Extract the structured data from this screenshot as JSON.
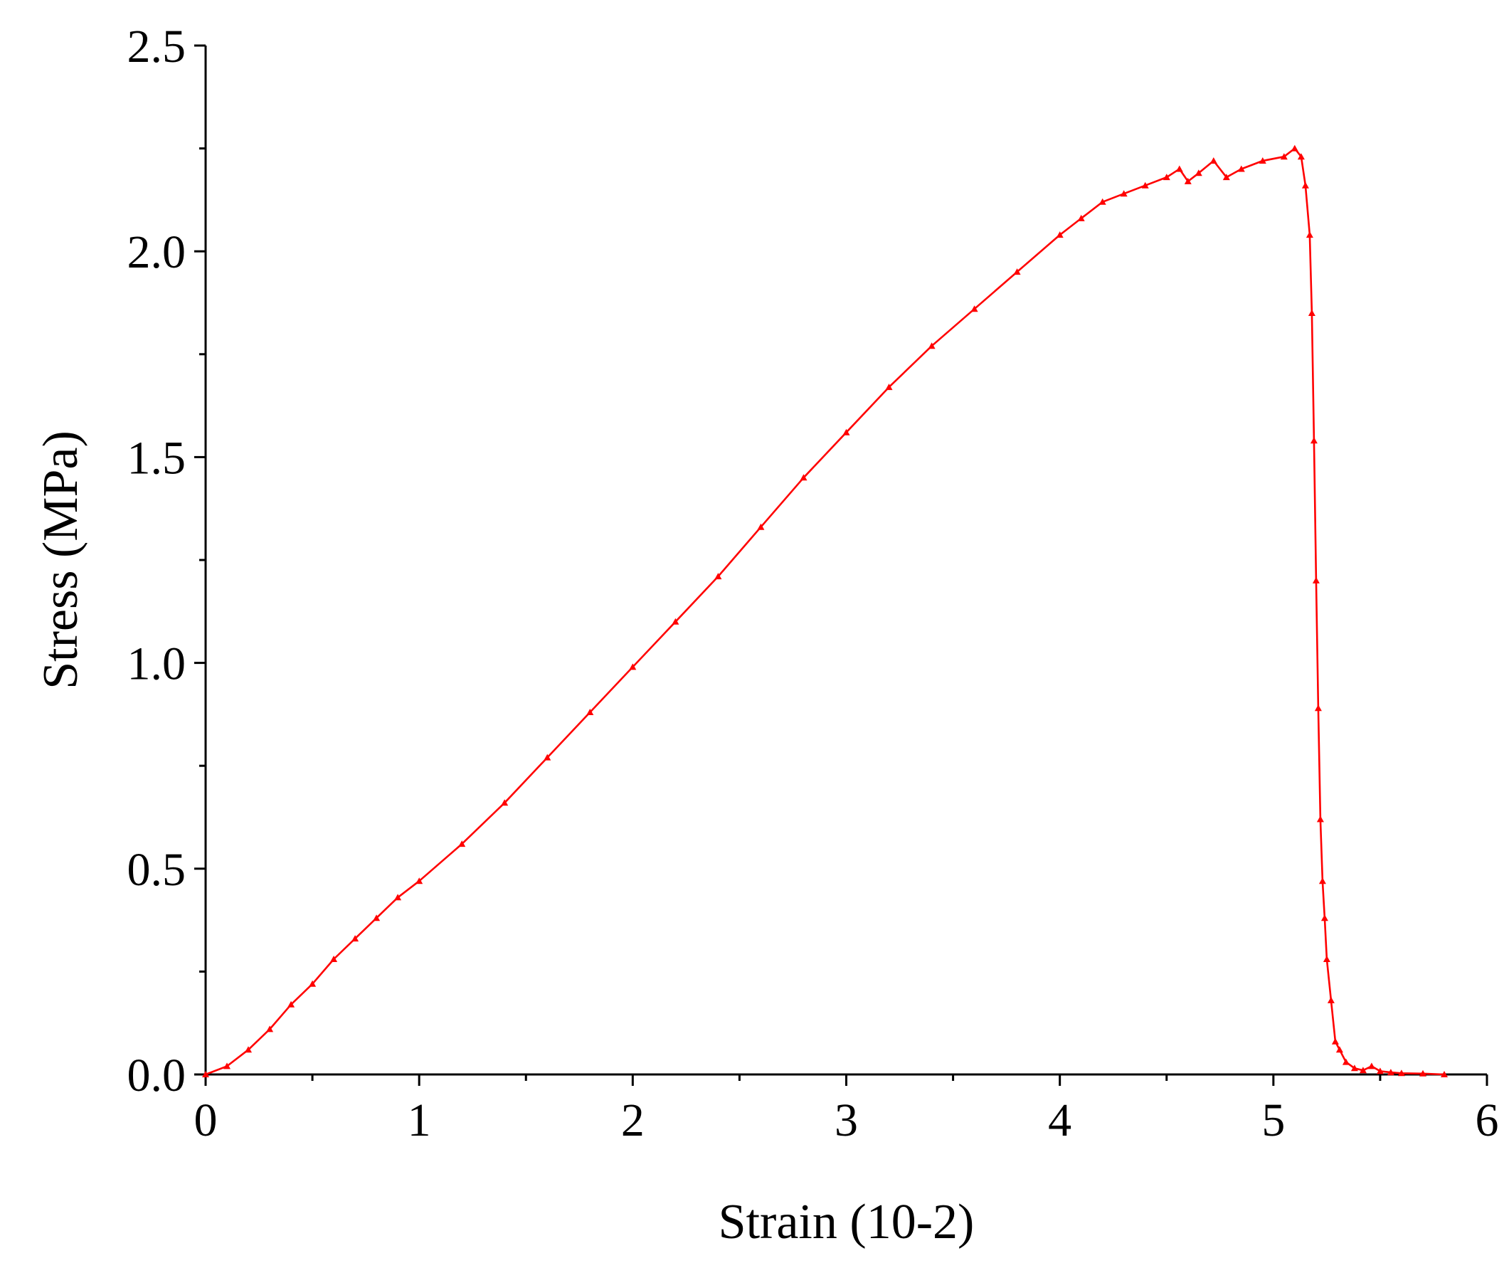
{
  "chart_data": {
    "type": "line",
    "title": "",
    "xlabel": "Strain (10-2)",
    "ylabel": "Stress (MPa)",
    "xlim": [
      0,
      6
    ],
    "ylim": [
      0,
      2.5
    ],
    "x_ticks": [
      "0",
      "1",
      "2",
      "3",
      "4",
      "5",
      "6"
    ],
    "y_ticks": [
      "0.0",
      "0.5",
      "1.0",
      "1.5",
      "2.0",
      "2.5"
    ],
    "grid": false,
    "legend": "none",
    "series": [
      {
        "color": "#ff0000",
        "marker": "triangle",
        "x": [
          0,
          0.1,
          0.2,
          0.3,
          0.4,
          0.5,
          0.6,
          0.7,
          0.8,
          0.9,
          1.0,
          1.2,
          1.4,
          1.6,
          1.8,
          2.0,
          2.2,
          2.4,
          2.6,
          2.8,
          3.0,
          3.2,
          3.4,
          3.6,
          3.8,
          4.0,
          4.1,
          4.2,
          4.3,
          4.4,
          4.5,
          4.56,
          4.6,
          4.65,
          4.72,
          4.78,
          4.85,
          4.95,
          5.05,
          5.1,
          5.13,
          5.15,
          5.17,
          5.18,
          5.19,
          5.2,
          5.21,
          5.22,
          5.23,
          5.24,
          5.25,
          5.27,
          5.29,
          5.31,
          5.34,
          5.38,
          5.42,
          5.46,
          5.5,
          5.55,
          5.6,
          5.7,
          5.8
        ],
        "y": [
          0.0,
          0.02,
          0.06,
          0.11,
          0.17,
          0.22,
          0.28,
          0.33,
          0.38,
          0.43,
          0.47,
          0.56,
          0.66,
          0.77,
          0.88,
          0.99,
          1.1,
          1.21,
          1.33,
          1.45,
          1.56,
          1.67,
          1.77,
          1.86,
          1.95,
          2.04,
          2.08,
          2.12,
          2.14,
          2.16,
          2.18,
          2.2,
          2.17,
          2.19,
          2.22,
          2.18,
          2.2,
          2.22,
          2.23,
          2.25,
          2.23,
          2.16,
          2.04,
          1.85,
          1.54,
          1.2,
          0.89,
          0.62,
          0.47,
          0.38,
          0.28,
          0.18,
          0.08,
          0.06,
          0.03,
          0.015,
          0.01,
          0.02,
          0.008,
          0.005,
          0.003,
          0.002,
          0.0
        ]
      }
    ]
  }
}
